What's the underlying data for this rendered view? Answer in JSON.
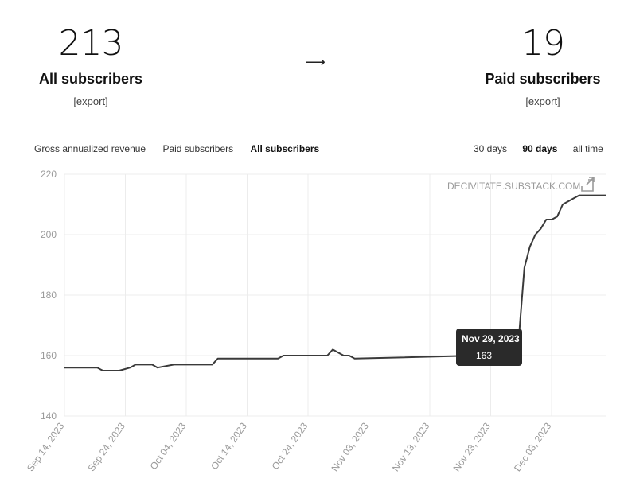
{
  "stats": {
    "all": {
      "value": "213",
      "label": "All subscribers",
      "export": "[export]"
    },
    "arrow": "⟶",
    "paid": {
      "value": "19",
      "label": "Paid subscribers",
      "export": "[export]"
    }
  },
  "metric_tabs": [
    {
      "label": "Gross annualized revenue",
      "active": false
    },
    {
      "label": "Paid subscribers",
      "active": false
    },
    {
      "label": "All subscribers",
      "active": true
    }
  ],
  "range_tabs": [
    {
      "label": "30 days",
      "active": false
    },
    {
      "label": "90 days",
      "active": true
    },
    {
      "label": "all time",
      "active": false
    }
  ],
  "watermark": "DECIVITATE.SUBSTACK.COM",
  "watermark_icon": "external-link-icon",
  "tooltip": {
    "date": "Nov 29, 2023",
    "value": "163"
  },
  "colors": {
    "line": "#3a3a3a",
    "grid": "#ececec",
    "tick": "#9a9a9a",
    "tooltip_bg": "#2a2a2a"
  },
  "chart_data": {
    "type": "line",
    "title": "",
    "xlabel": "",
    "ylabel": "",
    "ylim": [
      140,
      220
    ],
    "yticks": [
      140,
      160,
      180,
      200,
      220
    ],
    "xtick_labels": [
      "Sep 14, 2023",
      "Sep 24, 2023",
      "Oct 04, 2023",
      "Oct 14, 2023",
      "Oct 24, 2023",
      "Nov 03, 2023",
      "Nov 13, 2023",
      "Nov 23, 2023",
      "Dec 03, 2023"
    ],
    "grid": true,
    "series": [
      {
        "x": [
          0,
          6,
          7,
          9,
          10,
          12,
          13,
          16,
          17,
          20,
          21,
          27,
          28,
          39,
          40,
          48,
          49,
          50,
          51,
          52,
          53,
          75,
          76,
          77,
          79,
          80,
          81,
          82,
          83,
          84,
          85,
          86,
          87,
          88,
          89,
          90,
          91,
          92,
          93,
          94,
          95,
          96,
          97,
          98,
          99
        ],
        "values": [
          156,
          156,
          155,
          155,
          155,
          156,
          157,
          157,
          156,
          157,
          157,
          157,
          159,
          159,
          160,
          160,
          162,
          161,
          160,
          160,
          159,
          160,
          161,
          162,
          163,
          163,
          163,
          163,
          166,
          189,
          196,
          200,
          202,
          205,
          205,
          206,
          210,
          211,
          212,
          213,
          213,
          213,
          213,
          213,
          213
        ]
      }
    ]
  }
}
